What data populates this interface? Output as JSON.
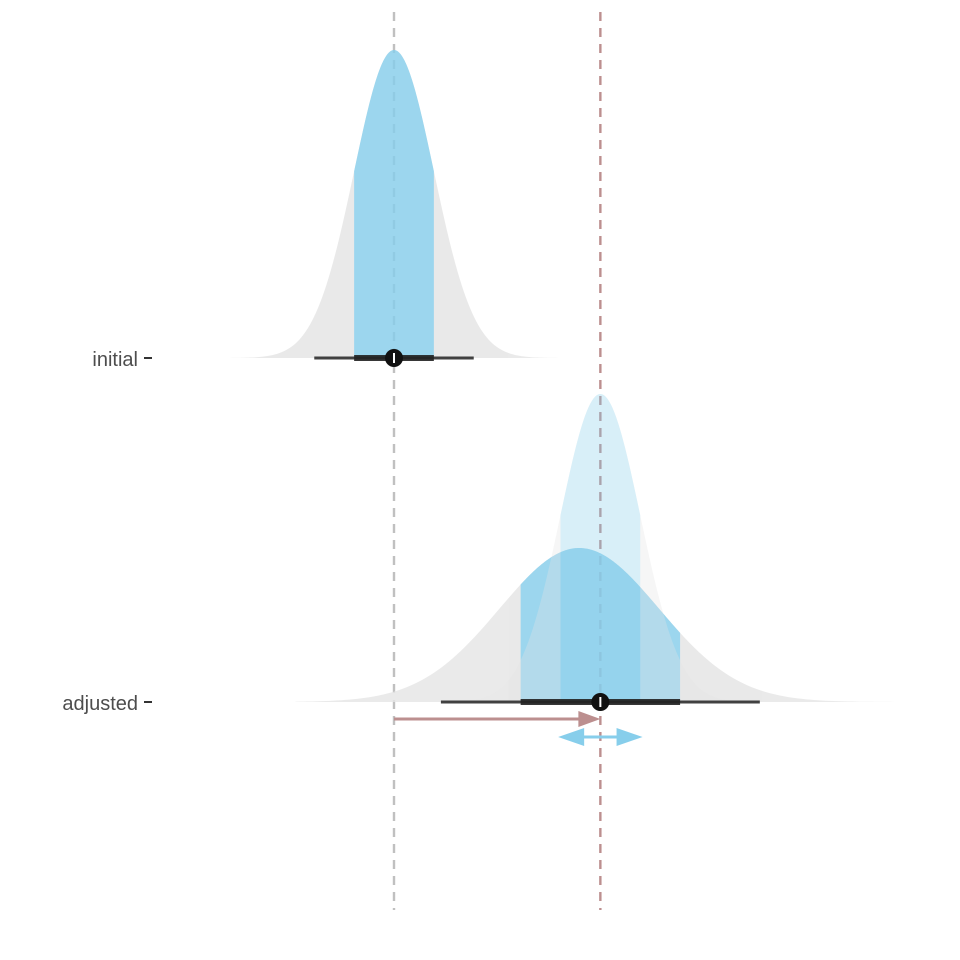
{
  "chart_data": {
    "type": "area",
    "title": "",
    "xlabel": "",
    "ylabel": "",
    "categories": [
      "initial",
      "adjusted"
    ],
    "xlim": [
      -3.0,
      10.0
    ],
    "grid": false,
    "legend": "none",
    "series": [
      {
        "category": "initial",
        "distribution": "normal",
        "mean": 0.0,
        "sd": 0.85,
        "point": 0.0,
        "interval_inner": [
          -0.85,
          0.85
        ],
        "interval_outer": [
          -1.7,
          1.7
        ],
        "support": [
          -3.5,
          3.5
        ]
      },
      {
        "category": "adjusted",
        "distribution": "normal",
        "mean": 3.95,
        "sd": 1.7,
        "point": 4.4,
        "interval_inner": [
          2.7,
          6.1
        ],
        "interval_outer": [
          1.0,
          7.8
        ],
        "support": [
          -2.1,
          11.0
        ]
      },
      {
        "category": "adjusted",
        "distribution": "normal",
        "mean": 4.4,
        "sd": 0.85,
        "point": 4.4,
        "interval_inner": [
          3.55,
          5.25
        ],
        "interval_outer": [
          2.7,
          6.1
        ],
        "support": [
          0.9,
          7.9
        ],
        "faded": true
      }
    ],
    "reference_lines": [
      {
        "x": 0.0,
        "style": "dashed",
        "color": "#c0c0c0"
      },
      {
        "x": 4.4,
        "style": "dashed",
        "color": "#bc8f8f"
      }
    ],
    "annotations": [
      {
        "type": "arrow",
        "from": 0.0,
        "to": 4.4,
        "row": "adjusted",
        "color": "#bc8f8f"
      },
      {
        "type": "double-arrow",
        "from": 3.5,
        "to": 5.3,
        "row": "adjusted",
        "color": "#87ceeb"
      }
    ],
    "colors": {
      "outer_fill": "#e5e5e5",
      "inner_fill": "#87ceeb",
      "interval_line": "#222222",
      "point": "#111111"
    }
  }
}
